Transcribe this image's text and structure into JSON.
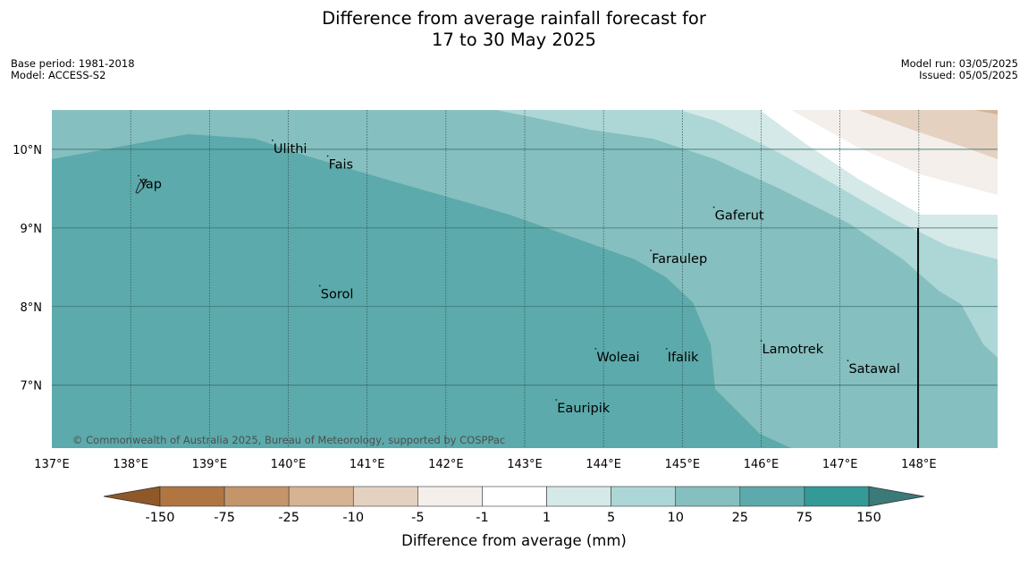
{
  "title": {
    "line1": "Difference from average rainfall forecast for",
    "line2": "17 to 30 May 2025"
  },
  "meta_left": {
    "base_period": "Base period: 1981-2018",
    "model": "Model: ACCESS-S2"
  },
  "meta_right": {
    "model_run": "Model run: 03/05/2025",
    "issued": "Issued: 05/05/2025"
  },
  "map": {
    "lon_range": [
      137,
      149
    ],
    "lat_range": [
      6.2,
      10.5
    ],
    "lon_ticks": [
      "137°E",
      "138°E",
      "139°E",
      "140°E",
      "141°E",
      "142°E",
      "143°E",
      "144°E",
      "145°E",
      "146°E",
      "147°E",
      "148°E"
    ],
    "lat_ticks": [
      "10°N",
      "9°N",
      "8°N",
      "7°N"
    ],
    "copyright": "© Commonwealth of Australia 2025, Bureau of Meteorology, supported by COSPPac",
    "places": [
      {
        "name": "Ulithi",
        "lon": 139.8,
        "lat": 10.0
      },
      {
        "name": "Fais",
        "lon": 140.5,
        "lat": 9.8
      },
      {
        "name": "Yap",
        "lon": 138.1,
        "lat": 9.55
      },
      {
        "name": "Gaferut",
        "lon": 145.4,
        "lat": 9.15
      },
      {
        "name": "Faraulep",
        "lon": 144.6,
        "lat": 8.6
      },
      {
        "name": "Sorol",
        "lon": 140.4,
        "lat": 8.15
      },
      {
        "name": "Lamotrek",
        "lon": 146.0,
        "lat": 7.45
      },
      {
        "name": "Satawal",
        "lon": 147.1,
        "lat": 7.2
      },
      {
        "name": "Woleai",
        "lon": 143.9,
        "lat": 7.35
      },
      {
        "name": "Ifalik",
        "lon": 144.8,
        "lat": 7.35
      },
      {
        "name": "Eauripik",
        "lon": 143.4,
        "lat": 6.7
      }
    ]
  },
  "colorbar": {
    "title": "Difference from average (mm)",
    "labels": [
      "-150",
      "-75",
      "-25",
      "-10",
      "-5",
      "-1",
      "1",
      "5",
      "10",
      "25",
      "75",
      "150"
    ],
    "colors": [
      "#b07642",
      "#c4956b",
      "#d5b393",
      "#e5d1c0",
      "#f4efea",
      "#ffffff",
      "#d4e9e8",
      "#add7d6",
      "#86bfbf",
      "#5caaab",
      "#339a98"
    ],
    "under_color": "#905828",
    "over_color": "#3a7a78"
  }
}
